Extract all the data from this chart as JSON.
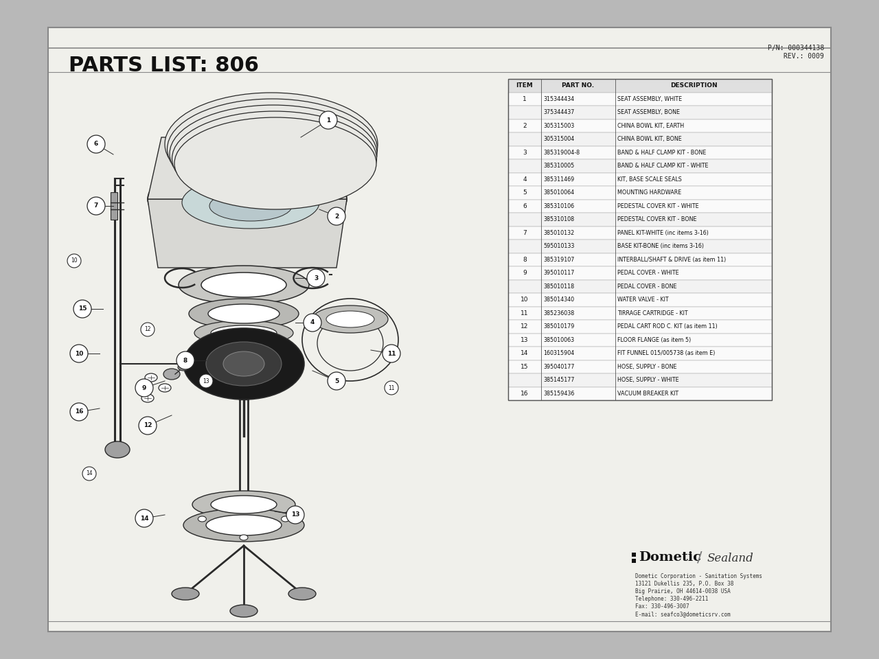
{
  "title": "PARTS LIST: 806",
  "pn_text": "P/N: 000344138\nREV.: 0009",
  "background_outer": "#b8b8b8",
  "background_page": "#f0f0eb",
  "border_color": "#555555",
  "table_header": [
    "ITEM",
    "PART NO.",
    "DESCRIPTION"
  ],
  "table_rows": [
    [
      "1",
      "315344434",
      "SEAT ASSEMBLY, WHITE"
    ],
    [
      "",
      "375344437",
      "SEAT ASSEMBLY, BONE"
    ],
    [
      "2",
      "305315003",
      "CHINA BOWL KIT, EARTH"
    ],
    [
      "",
      "305315004",
      "CHINA BOWL KIT, BONE"
    ],
    [
      "3",
      "385319004-8",
      "BAND & HALF CLAMP KIT - BONE"
    ],
    [
      "",
      "385310005",
      "BAND & HALF CLAMP KIT - WHITE"
    ],
    [
      "4",
      "385311469",
      "KIT, BASE SCALE SEALS"
    ],
    [
      "5",
      "385010064",
      "MOUNTING HARDWARE"
    ],
    [
      "6",
      "385310106",
      "PEDESTAL COVER KIT - WHITE"
    ],
    [
      "",
      "385310108",
      "PEDESTAL COVER KIT - BONE"
    ],
    [
      "7",
      "385010132",
      "PANEL KIT-WHITE (inc items 3-16)"
    ],
    [
      "",
      "595010133",
      "BASE KIT-BONE (inc items 3-16)"
    ],
    [
      "8",
      "385319107",
      "INTERBALL/SHAFT & DRIVE (as item 11)"
    ],
    [
      "9",
      "395010117",
      "PEDAL COVER - WHITE"
    ],
    [
      "",
      "385010118",
      "PEDAL COVER - BONE"
    ],
    [
      "10",
      "385014340",
      "WATER VALVE - KIT"
    ],
    [
      "11",
      "385236038",
      "TIRRAGE CARTRIDGE - KIT"
    ],
    [
      "12",
      "385010179",
      "PEDAL CART ROD C. KIT (as item 11)"
    ],
    [
      "13",
      "385010063",
      "FLOOR FLANGE (as item 5)"
    ],
    [
      "14",
      "160315904",
      "FIT FUNNEL 015/005738 (as item E)"
    ],
    [
      "15",
      "395040177",
      "HOSE, SUPPLY - BONE"
    ],
    [
      "",
      "385145177",
      "HOSE, SUPPLY - WHITE"
    ],
    [
      "16",
      "385159436",
      "VACUUM BREAKER KIT"
    ]
  ],
  "footer_company": "Dometic Corporation - Sanitation Systems",
  "footer_addr1": "13121 Dukellis 235, P.O. Box 38",
  "footer_addr2": "Big Prairie, OH 44614-0038 USA",
  "footer_phone": "Telephone: 330-496-2211",
  "footer_fax": "Fax: 330-496-3007",
  "footer_email": "E-mail: seafco3@dometicsrv.com",
  "line_color": "#2a2a2a",
  "light_gray": "#d0d0d0",
  "mid_gray": "#a0a0a0",
  "dark_gray": "#404040"
}
